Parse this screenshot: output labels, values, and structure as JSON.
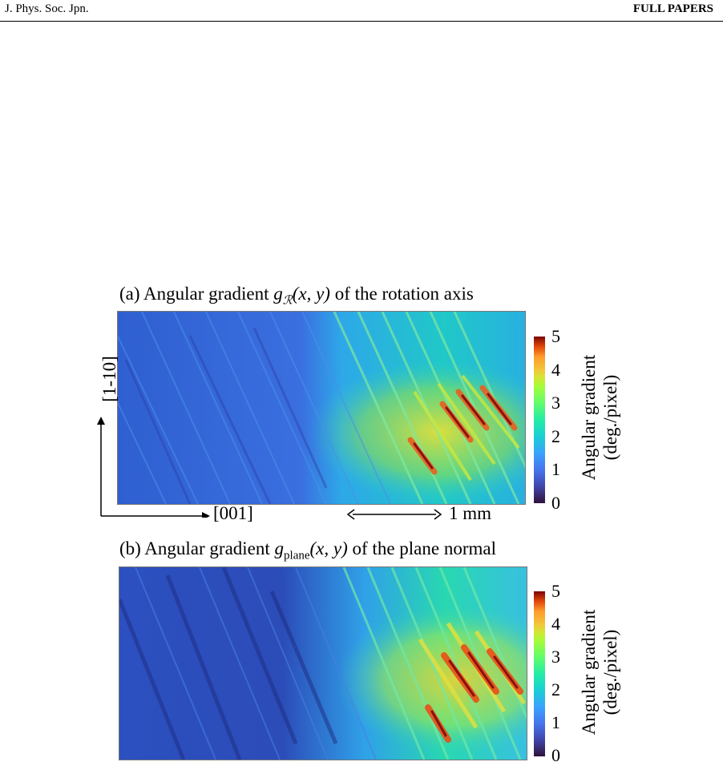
{
  "header": {
    "journal": "J. Phys. Soc. Jpn.",
    "section": "FULL PAPERS"
  },
  "figure": {
    "panel_a": {
      "caption_prefix": "(a)  Angular gradient ",
      "symbol": "g",
      "subscript": "ℛ",
      "args": "(x, y)",
      "caption_suffix": " of the rotation axis"
    },
    "panel_b": {
      "caption_prefix": "(b)  Angular gradient ",
      "symbol": "g",
      "subscript": "plane",
      "args": "(x, y)",
      "caption_suffix": " of the plane normal"
    },
    "colorbar": {
      "ticks": [
        "5",
        "4",
        "3",
        "2",
        "1",
        "0"
      ],
      "label_line1": "Angular gradient",
      "label_line2": "(deg./pixel)",
      "min": 0,
      "max": 5,
      "colormap": "turbo"
    },
    "axes": {
      "vertical_label": "[1-10]",
      "horizontal_label": "[001]"
    },
    "scale_bar": {
      "label": "1 mm"
    }
  }
}
